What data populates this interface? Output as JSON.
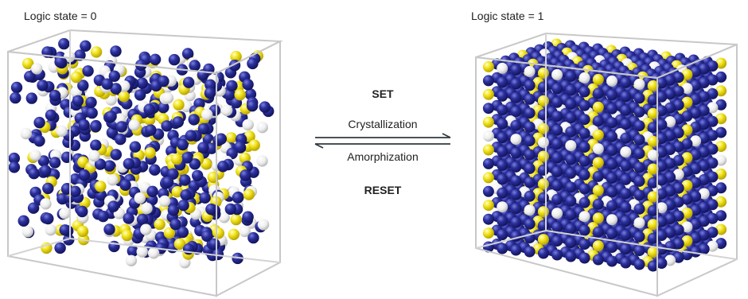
{
  "left_panel": {
    "state_label": "Logic state = 0",
    "structure": "amorphous"
  },
  "right_panel": {
    "state_label": "Logic state = 1",
    "structure": "crystalline"
  },
  "transition": {
    "set_label": "SET",
    "forward_process": "Crystallization",
    "reverse_process": "Amorphization",
    "reset_label": "RESET"
  },
  "colors": {
    "atom_blue": "#2b2f9c",
    "atom_yellow": "#f2e41c",
    "atom_white": "#f4f4f4",
    "cube_edge": "#c8c8c8",
    "arrow": "#2f3a40"
  }
}
